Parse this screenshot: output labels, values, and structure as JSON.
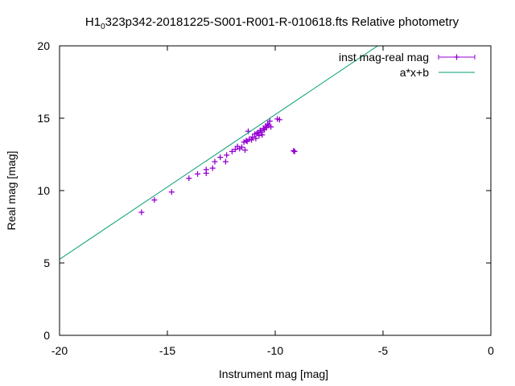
{
  "chart_data": {
    "type": "scatter",
    "title": {
      "prefix": "H1",
      "subscript": "0",
      "suffix": "323p342-20181225-S001-R001-R-010618.fts Relative photometry"
    },
    "xlabel": "Instrument mag [mag]",
    "ylabel": "Real mag [mag]",
    "xlim": [
      -20,
      0
    ],
    "ylim": [
      0,
      20
    ],
    "xticks": [
      -20,
      -15,
      -10,
      -5,
      0
    ],
    "yticks": [
      0,
      5,
      10,
      15,
      20
    ],
    "grid": false,
    "legend_position": "top-right",
    "series": [
      {
        "name": "inst mag-real mag",
        "kind": "points",
        "color": "#9400d3",
        "points": [
          [
            -16.2,
            8.5
          ],
          [
            -15.6,
            9.35
          ],
          [
            -14.8,
            9.9
          ],
          [
            -14.0,
            10.85
          ],
          [
            -13.6,
            11.15
          ],
          [
            -13.2,
            11.2
          ],
          [
            -13.2,
            11.45
          ],
          [
            -12.9,
            11.55
          ],
          [
            -12.8,
            12.0
          ],
          [
            -12.55,
            12.3
          ],
          [
            -12.3,
            12.0
          ],
          [
            -12.25,
            12.45
          ],
          [
            -12.0,
            12.7
          ],
          [
            -11.85,
            12.85
          ],
          [
            -11.75,
            13.05
          ],
          [
            -11.65,
            12.9
          ],
          [
            -11.55,
            13.0
          ],
          [
            -11.45,
            13.35
          ],
          [
            -11.4,
            12.8
          ],
          [
            -11.35,
            13.45
          ],
          [
            -11.3,
            13.4
          ],
          [
            -11.25,
            14.1
          ],
          [
            -11.2,
            13.55
          ],
          [
            -11.1,
            13.5
          ],
          [
            -11.05,
            13.7
          ],
          [
            -10.95,
            13.9
          ],
          [
            -10.9,
            13.6
          ],
          [
            -10.85,
            13.95
          ],
          [
            -10.8,
            14.0
          ],
          [
            -10.75,
            13.8
          ],
          [
            -10.7,
            14.15
          ],
          [
            -10.65,
            14.05
          ],
          [
            -10.6,
            13.85
          ],
          [
            -10.55,
            14.3
          ],
          [
            -10.5,
            14.2
          ],
          [
            -10.45,
            14.45
          ],
          [
            -10.4,
            14.35
          ],
          [
            -10.35,
            14.6
          ],
          [
            -10.3,
            14.5
          ],
          [
            -10.25,
            14.8
          ],
          [
            -10.2,
            14.4
          ],
          [
            -9.9,
            14.95
          ],
          [
            -9.8,
            14.9
          ],
          [
            -9.15,
            12.75
          ],
          [
            -9.1,
            12.7
          ]
        ]
      },
      {
        "name": "a*x+b",
        "kind": "line",
        "color": "#009e73",
        "slope": 1.0,
        "intercept": 25.25
      }
    ]
  }
}
